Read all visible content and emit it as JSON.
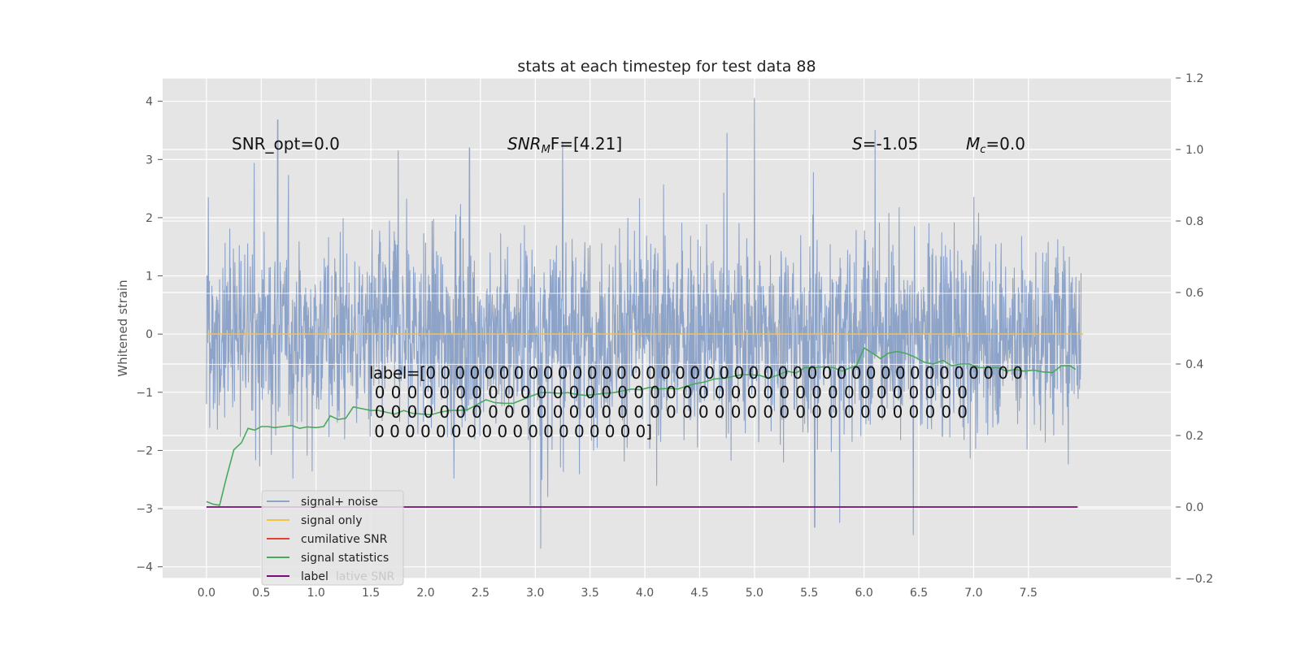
{
  "chart_data": {
    "type": "line",
    "title": "stats at each timestep for test data 88",
    "ylabel": "Whitened strain",
    "ylabel_right": "",
    "xlim": [
      -0.4,
      8.8
    ],
    "ylim": [
      -4.2,
      4.4
    ],
    "ylim_right": [
      -0.2,
      1.2
    ],
    "x_ticks": [
      "0.0",
      "0.5",
      "1.0",
      "1.5",
      "2.0",
      "2.5",
      "3.0",
      "3.5",
      "4.0",
      "4.5",
      "5.0",
      "5.5",
      "6.0",
      "6.5",
      "7.0",
      "7.5"
    ],
    "y_ticks": [
      "−4",
      "−3",
      "−2",
      "−1",
      "0",
      "1",
      "2",
      "3",
      "4"
    ],
    "y_ticks_right": [
      "−0.2",
      "0.0",
      "0.2",
      "0.4",
      "0.6",
      "0.8",
      "1.0",
      "1.2"
    ],
    "grid": true,
    "legend_position": "lower-left",
    "annotations": {
      "snr_opt": "SNR_opt=0.0",
      "snr_mf_prefix": "SNR",
      "snr_mf_sub": "M",
      "snr_mf_suffix": "F=[4.21]",
      "s_prefix": "S",
      "s_suffix": "=-1.05",
      "mc_prefix": "M",
      "mc_sub": "c",
      "mc_suffix": "=0.0",
      "label_lines": [
        "label=[0 0 0 0 0 0 0 0 0 0 0 0 0 0 0 0 0 0 0 0 0 0 0 0 0 0 0 0 0 0 0 0 0 0 0 0 0 0 0 0 0",
        " 0 0 0 0 0 0 0 0 0 0 0 0 0 0 0 0 0 0 0 0 0 0 0 0 0 0 0 0 0 0 0 0 0 0 0 0 0",
        " 0 0 0 0 0 0 0 0 0 0 0 0 0 0 0 0 0 0 0 0 0 0 0 0 0 0 0 0 0 0 0 0 0 0 0 0 0",
        " 0 0 0 0 0 0 0 0 0 0 0 0 0 0 0 0 0 0]"
      ]
    },
    "legend": [
      "signal+ noise",
      "signal only",
      "cumilative SNR",
      "signal statistics",
      "label"
    ],
    "legend_ghost_text": "lative SNR",
    "colors": {
      "signal_noise": "#8ea3c8",
      "signal_only": "#f5c342",
      "cumulative_snr": "#e8402a",
      "signal_statistics": "#4aa85e",
      "label": "#7a0a78",
      "plot_bg": "#e5e5e5",
      "grid": "#ffffff"
    },
    "series": [
      {
        "name": "signal+ noise",
        "axis": "left",
        "t_range": [
          0.0,
          7.98
        ],
        "envelope_max": 4.05,
        "envelope_min": -3.68,
        "peaks": [
          [
            0.65,
            3.68
          ],
          [
            5.0,
            4.05
          ],
          [
            6.1,
            3.5
          ],
          [
            3.25,
            3.3
          ],
          [
            4.75,
            3.45
          ],
          [
            2.4,
            3.2
          ],
          [
            1.75,
            3.15
          ],
          [
            6.45,
            -3.45
          ],
          [
            3.05,
            -3.68
          ],
          [
            5.55,
            -3.32
          ]
        ]
      },
      {
        "name": "signal only",
        "axis": "left",
        "x": [
          0.0,
          8.0
        ],
        "y": [
          0.0,
          0.0
        ]
      },
      {
        "name": "signal statistics",
        "axis": "right",
        "x": [
          0.0,
          0.06,
          0.12,
          0.18,
          0.25,
          0.32,
          0.38,
          0.44,
          0.5,
          0.56,
          0.62,
          0.7,
          0.78,
          0.85,
          0.92,
          1.0,
          1.07,
          1.13,
          1.2,
          1.27,
          1.34,
          1.42,
          1.5,
          1.57,
          1.64,
          1.72,
          1.8,
          1.88,
          1.96,
          2.05,
          2.13,
          2.22,
          2.3,
          2.38,
          2.46,
          2.55,
          2.63,
          2.72,
          2.8,
          2.88,
          2.96,
          3.05,
          3.13,
          3.22,
          3.3,
          3.38,
          3.46,
          3.55,
          3.63,
          3.72,
          3.8,
          3.88,
          3.96,
          4.05,
          4.13,
          4.22,
          4.3,
          4.38,
          4.46,
          4.55,
          4.63,
          4.72,
          4.8,
          4.88,
          4.96,
          5.05,
          5.13,
          5.22,
          5.3,
          5.38,
          5.46,
          5.55,
          5.63,
          5.72,
          5.8,
          5.88,
          5.93,
          6.0,
          6.08,
          6.15,
          6.22,
          6.3,
          6.38,
          6.46,
          6.55,
          6.63,
          6.72,
          6.8,
          6.88,
          6.96,
          7.05,
          7.13,
          7.22,
          7.3,
          7.38,
          7.46,
          7.55,
          7.63,
          7.72,
          7.8,
          7.88,
          7.93
        ],
        "y": [
          0.015,
          0.008,
          0.005,
          0.08,
          0.16,
          0.18,
          0.22,
          0.215,
          0.225,
          0.225,
          0.222,
          0.225,
          0.228,
          0.22,
          0.224,
          0.222,
          0.225,
          0.255,
          0.245,
          0.248,
          0.28,
          0.275,
          0.27,
          0.27,
          0.265,
          0.26,
          0.27,
          0.262,
          0.26,
          0.258,
          0.265,
          0.27,
          0.27,
          0.272,
          0.285,
          0.3,
          0.292,
          0.29,
          0.29,
          0.3,
          0.31,
          0.32,
          0.32,
          0.318,
          0.32,
          0.315,
          0.312,
          0.315,
          0.318,
          0.32,
          0.325,
          0.33,
          0.328,
          0.335,
          0.33,
          0.332,
          0.33,
          0.338,
          0.345,
          0.35,
          0.358,
          0.36,
          0.365,
          0.37,
          0.37,
          0.368,
          0.36,
          0.37,
          0.38,
          0.375,
          0.39,
          0.39,
          0.392,
          0.39,
          0.38,
          0.39,
          0.395,
          0.445,
          0.43,
          0.415,
          0.43,
          0.435,
          0.43,
          0.42,
          0.405,
          0.4,
          0.41,
          0.395,
          0.4,
          0.4,
          0.39,
          0.39,
          0.39,
          0.38,
          0.385,
          0.38,
          0.383,
          0.378,
          0.376,
          0.395,
          0.395,
          0.385
        ]
      },
      {
        "name": "label",
        "axis": "right",
        "x": [
          0.0,
          7.95
        ],
        "y": [
          0.0,
          0.0
        ]
      }
    ]
  }
}
